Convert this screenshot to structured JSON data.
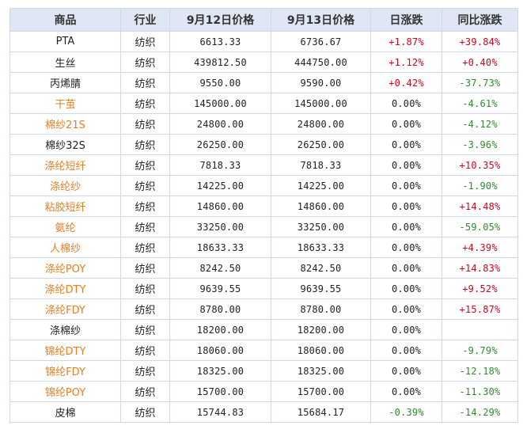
{
  "headers": [
    "商品",
    "行业",
    "9月12日价格",
    "9月13日价格",
    "日涨跌",
    "同比涨跌"
  ],
  "rows": [
    {
      "name": "PTA",
      "industry": "纺织",
      "p1": "6613.33",
      "p2": "6736.67",
      "day": "+1.87%",
      "yoy": "+39.84%",
      "name_color": "default",
      "day_color": "red",
      "yoy_color": "red"
    },
    {
      "name": "生丝",
      "industry": "纺织",
      "p1": "439812.50",
      "p2": "444750.00",
      "day": "+1.12%",
      "yoy": "+0.40%",
      "name_color": "default",
      "day_color": "red",
      "yoy_color": "red"
    },
    {
      "name": "丙烯腈",
      "industry": "纺织",
      "p1": "9550.00",
      "p2": "9590.00",
      "day": "+0.42%",
      "yoy": "-37.73%",
      "name_color": "default",
      "day_color": "red",
      "yoy_color": "green"
    },
    {
      "name": "干茧",
      "industry": "纺织",
      "p1": "145000.00",
      "p2": "145000.00",
      "day": "0.00%",
      "yoy": "-4.61%",
      "name_color": "orange",
      "day_color": "default",
      "yoy_color": "green"
    },
    {
      "name": "棉纱21S",
      "industry": "纺织",
      "p1": "24800.00",
      "p2": "24800.00",
      "day": "0.00%",
      "yoy": "-4.12%",
      "name_color": "orange",
      "day_color": "default",
      "yoy_color": "green"
    },
    {
      "name": "棉纱32S",
      "industry": "纺织",
      "p1": "26250.00",
      "p2": "26250.00",
      "day": "0.00%",
      "yoy": "-3.96%",
      "name_color": "default",
      "day_color": "default",
      "yoy_color": "green"
    },
    {
      "name": "涤纶短纤",
      "industry": "纺织",
      "p1": "7818.33",
      "p2": "7818.33",
      "day": "0.00%",
      "yoy": "+10.35%",
      "name_color": "orange",
      "day_color": "default",
      "yoy_color": "red"
    },
    {
      "name": "涤纶纱",
      "industry": "纺织",
      "p1": "14225.00",
      "p2": "14225.00",
      "day": "0.00%",
      "yoy": "-1.90%",
      "name_color": "orange",
      "day_color": "default",
      "yoy_color": "green"
    },
    {
      "name": "粘胶短纤",
      "industry": "纺织",
      "p1": "14860.00",
      "p2": "14860.00",
      "day": "0.00%",
      "yoy": "+14.48%",
      "name_color": "orange",
      "day_color": "default",
      "yoy_color": "red"
    },
    {
      "name": "氨纶",
      "industry": "纺织",
      "p1": "33250.00",
      "p2": "33250.00",
      "day": "0.00%",
      "yoy": "-59.05%",
      "name_color": "orange",
      "day_color": "default",
      "yoy_color": "green"
    },
    {
      "name": "人棉纱",
      "industry": "纺织",
      "p1": "18633.33",
      "p2": "18633.33",
      "day": "0.00%",
      "yoy": "+4.39%",
      "name_color": "orange",
      "day_color": "default",
      "yoy_color": "red"
    },
    {
      "name": "涤纶POY",
      "industry": "纺织",
      "p1": "8242.50",
      "p2": "8242.50",
      "day": "0.00%",
      "yoy": "+14.83%",
      "name_color": "orange",
      "day_color": "default",
      "yoy_color": "red"
    },
    {
      "name": "涤纶DTY",
      "industry": "纺织",
      "p1": "9639.55",
      "p2": "9639.55",
      "day": "0.00%",
      "yoy": "+9.52%",
      "name_color": "orange",
      "day_color": "default",
      "yoy_color": "red"
    },
    {
      "name": "涤纶FDY",
      "industry": "纺织",
      "p1": "8780.00",
      "p2": "8780.00",
      "day": "0.00%",
      "yoy": "+15.87%",
      "name_color": "orange",
      "day_color": "default",
      "yoy_color": "red"
    },
    {
      "name": "涤棉纱",
      "industry": "纺织",
      "p1": "18200.00",
      "p2": "18200.00",
      "day": "0.00%",
      "yoy": "",
      "name_color": "default",
      "day_color": "default",
      "yoy_color": "default"
    },
    {
      "name": "锦纶DTY",
      "industry": "纺织",
      "p1": "18060.00",
      "p2": "18060.00",
      "day": "0.00%",
      "yoy": "-9.79%",
      "name_color": "orange",
      "day_color": "default",
      "yoy_color": "green"
    },
    {
      "name": "锦纶FDY",
      "industry": "纺织",
      "p1": "18325.00",
      "p2": "18325.00",
      "day": "0.00%",
      "yoy": "-12.18%",
      "name_color": "orange",
      "day_color": "default",
      "yoy_color": "green"
    },
    {
      "name": "锦纶POY",
      "industry": "纺织",
      "p1": "15700.00",
      "p2": "15700.00",
      "day": "0.00%",
      "yoy": "-11.30%",
      "name_color": "orange",
      "day_color": "default",
      "yoy_color": "green"
    },
    {
      "name": "皮棉",
      "industry": "纺织",
      "p1": "15744.83",
      "p2": "15684.17",
      "day": "-0.39%",
      "yoy": "-14.29%",
      "name_color": "default",
      "day_color": "green",
      "yoy_color": "green"
    }
  ],
  "colors": {
    "orange": "#e67e22",
    "red": "#d0021b",
    "green": "#2e8b2e",
    "header_bg": "#dfe7f4",
    "border": "#cfd8e6"
  }
}
